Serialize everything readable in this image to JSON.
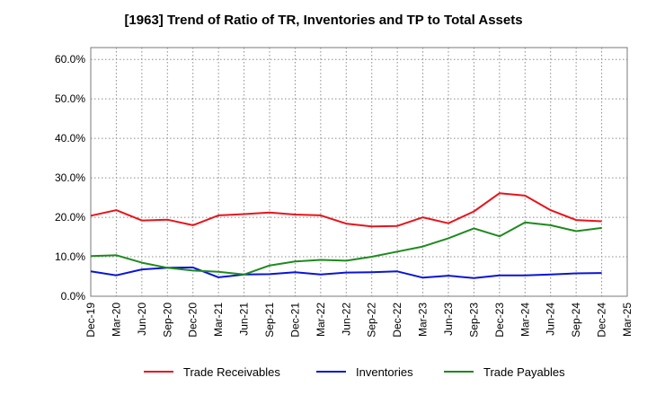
{
  "chart_data": {
    "type": "line",
    "title": "[1963]  Trend of Ratio of TR, Inventories and TP to Total Assets",
    "xlabel": "",
    "ylabel": "",
    "ylim": [
      0,
      63
    ],
    "yticks": [
      0,
      10,
      20,
      30,
      40,
      50,
      60
    ],
    "ytick_labels": [
      "0.0%",
      "10.0%",
      "20.0%",
      "30.0%",
      "40.0%",
      "50.0%",
      "60.0%"
    ],
    "categories": [
      "Dec-19",
      "Mar-20",
      "Jun-20",
      "Sep-20",
      "Dec-20",
      "Mar-21",
      "Jun-21",
      "Sep-21",
      "Dec-21",
      "Mar-22",
      "Jun-22",
      "Sep-22",
      "Dec-22",
      "Mar-23",
      "Jun-23",
      "Sep-23",
      "Dec-23",
      "Mar-24",
      "Jun-24",
      "Sep-24",
      "Dec-24",
      "Mar-25"
    ],
    "grid": true,
    "legend_position": "bottom",
    "series": [
      {
        "name": "Trade Receivables",
        "color": "#e8141b",
        "values": [
          20.4,
          21.8,
          19.2,
          19.4,
          18.0,
          20.5,
          20.8,
          21.2,
          20.7,
          20.5,
          18.4,
          17.7,
          17.8,
          20.0,
          18.5,
          21.5,
          26.1,
          25.5,
          21.8,
          19.3,
          19.0,
          null
        ]
      },
      {
        "name": "Inventories",
        "color": "#0a14d8",
        "values": [
          6.3,
          5.3,
          6.8,
          7.2,
          7.3,
          4.8,
          5.5,
          5.6,
          6.1,
          5.5,
          6.0,
          6.1,
          6.3,
          4.7,
          5.2,
          4.6,
          5.3,
          5.3,
          5.5,
          5.8,
          5.9,
          null
        ]
      },
      {
        "name": "Trade Payables",
        "color": "#1e8a1e",
        "values": [
          10.2,
          10.4,
          8.5,
          7.2,
          6.5,
          6.2,
          5.5,
          7.8,
          8.8,
          9.2,
          9.0,
          10.0,
          11.3,
          12.6,
          14.7,
          17.2,
          15.2,
          18.7,
          18.0,
          16.5,
          17.3,
          null
        ]
      }
    ]
  }
}
